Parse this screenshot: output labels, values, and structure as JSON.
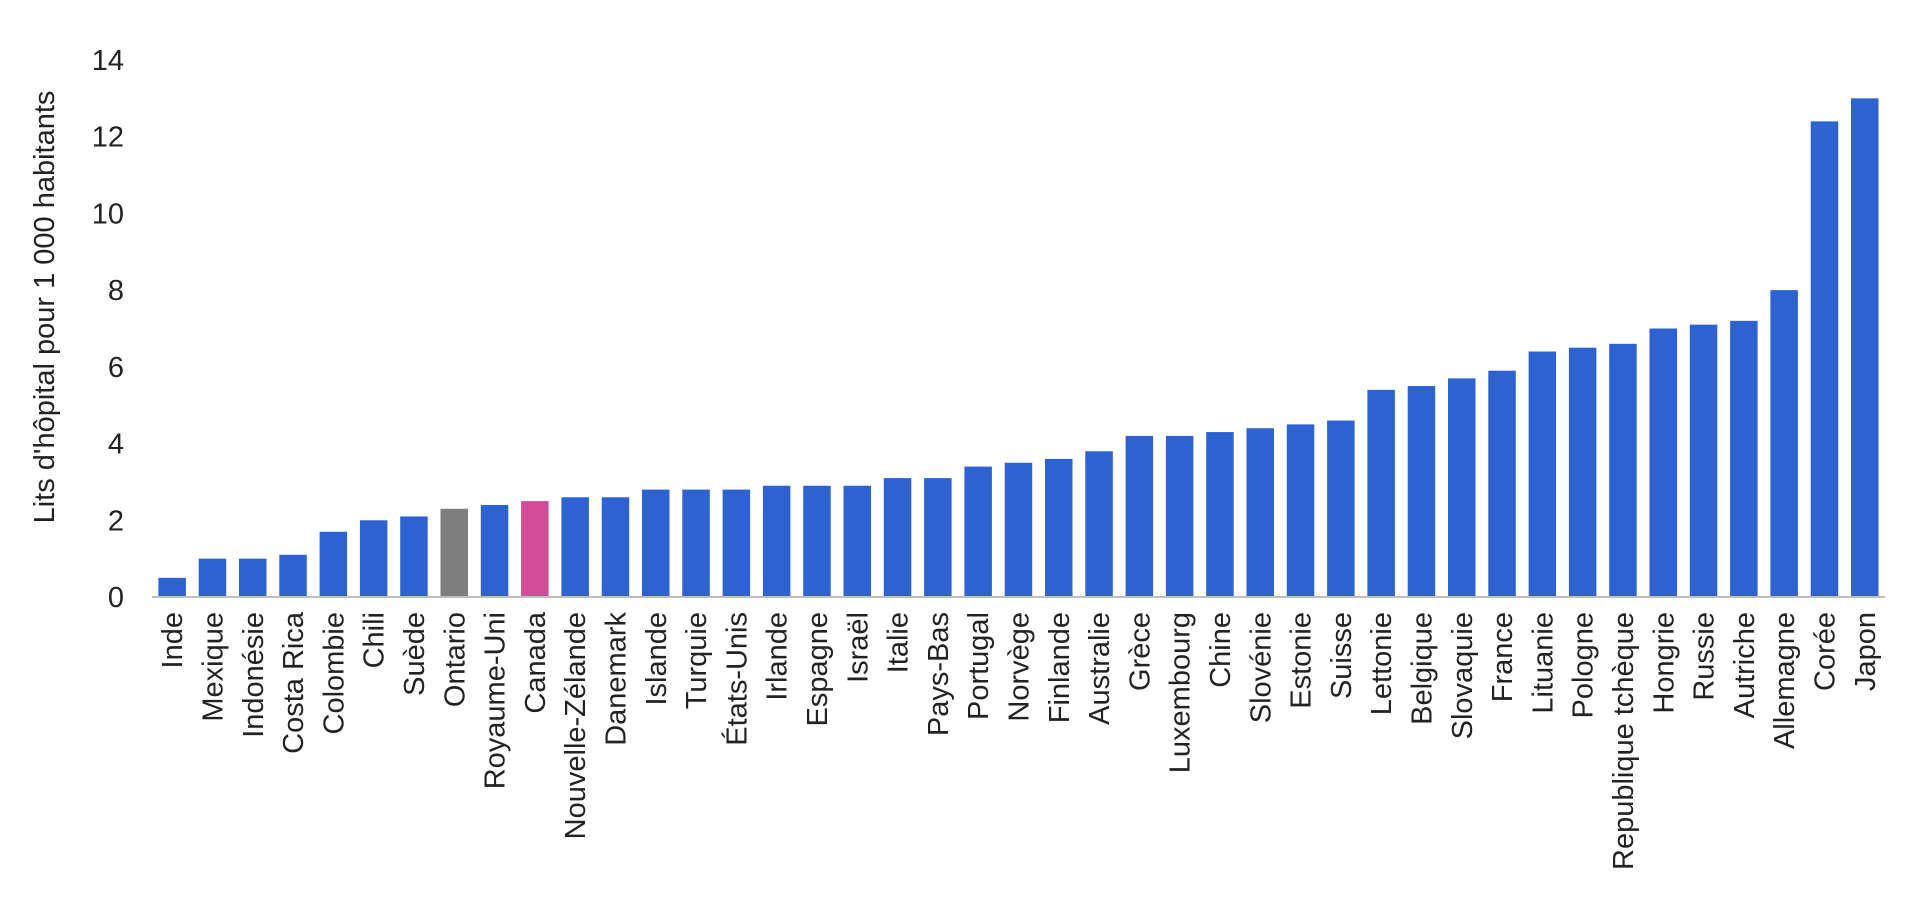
{
  "chart_data": {
    "type": "bar",
    "title": "",
    "xlabel": "",
    "ylabel": "Lits d'hôpital pour 1 000 habitants",
    "ylim": [
      0,
      14
    ],
    "yticks": [
      0,
      2,
      4,
      6,
      8,
      10,
      12,
      14
    ],
    "grid": false,
    "legend": "none",
    "colors": {
      "default": "#2d62d0",
      "Ontario": "#7f7f7f",
      "Canada": "#d14b96",
      "axis": "#bfbfbf"
    },
    "categories": [
      "Inde",
      "Mexique",
      "Indonésie",
      "Costa Rica",
      "Colombie",
      "Chili",
      "Suède",
      "Ontario",
      "Royaume-Uni",
      "Canada",
      "Nouvelle-Zélande",
      "Danemark",
      "Islande",
      "Turquie",
      "États-Unis",
      "Irlande",
      "Espagne",
      "Israël",
      "Italie",
      "Pays-Bas",
      "Portugal",
      "Norvège",
      "Finlande",
      "Australie",
      "Grèce",
      "Luxembourg",
      "Chine",
      "Slovénie",
      "Estonie",
      "Suisse",
      "Lettonie",
      "Belgique",
      "Slovaquie",
      "France",
      "Lituanie",
      "Pologne",
      "Republique tchèque",
      "Hongrie",
      "Russie",
      "Autriche",
      "Allemagne",
      "Corée",
      "Japon"
    ],
    "values": [
      0.5,
      1.0,
      1.0,
      1.1,
      1.7,
      2.0,
      2.1,
      2.3,
      2.4,
      2.5,
      2.6,
      2.6,
      2.8,
      2.8,
      2.8,
      2.9,
      2.9,
      2.9,
      3.1,
      3.1,
      3.4,
      3.5,
      3.6,
      3.8,
      4.2,
      4.2,
      4.3,
      4.4,
      4.5,
      4.6,
      5.4,
      5.5,
      5.7,
      5.9,
      6.4,
      6.5,
      6.6,
      7.0,
      7.1,
      7.2,
      8.0,
      12.4,
      13.0
    ]
  }
}
